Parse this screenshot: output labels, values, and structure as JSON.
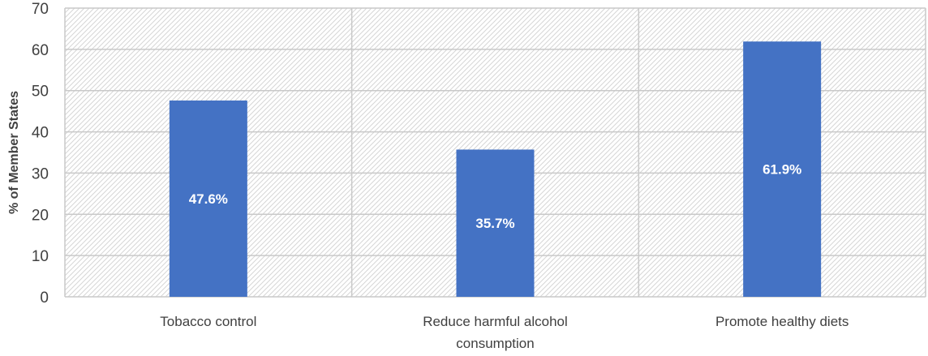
{
  "chart_data": {
    "type": "bar",
    "title": "",
    "xlabel": "",
    "ylabel": "% of Member States",
    "ylim": [
      0,
      70
    ],
    "yticks": [
      0,
      10,
      20,
      30,
      40,
      50,
      60,
      70
    ],
    "categories": [
      [
        "Tobacco control"
      ],
      [
        "Reduce harmful alcohol",
        "consumption"
      ],
      [
        "Promote healthy diets"
      ]
    ],
    "values": [
      47.6,
      35.7,
      61.9
    ],
    "data_labels": [
      "47.6%",
      "35.7%",
      "61.9%"
    ],
    "grid": true,
    "legend": "none",
    "colors": {
      "bar": "#4472C4",
      "grid": "#c9c9c9",
      "hatch": "#d6d6d6",
      "text": "#404040"
    }
  }
}
